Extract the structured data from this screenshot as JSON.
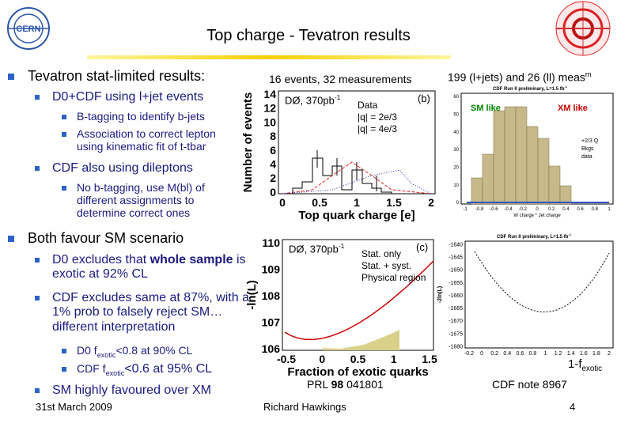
{
  "header": {
    "title": "Top charge - Tevatron results",
    "logo": "CERN"
  },
  "bullets": [
    {
      "level": 1,
      "segments": [
        {
          "text": "Tevatron stat-limited results:"
        }
      ]
    },
    {
      "level": 2,
      "segments": [
        {
          "text": "D0+CDF using l+jet events"
        }
      ]
    },
    {
      "level": 3,
      "segments": [
        {
          "text": "B-tagging to identify b-jets"
        }
      ]
    },
    {
      "level": 3,
      "segments": [
        {
          "text": "Association to correct lepton using kinematic fit of t-tbar"
        }
      ]
    },
    {
      "level": 2,
      "segments": [
        {
          "text": "CDF also using dileptons"
        }
      ]
    },
    {
      "level": 3,
      "segments": [
        {
          "text": "No b-tagging, use M(bl) of different assignments to determine correct ones"
        }
      ]
    },
    {
      "level": 1,
      "segments": [
        {
          "text": "Both favour SM scenario"
        }
      ]
    },
    {
      "level": 2,
      "segments": [
        {
          "text": "D0 excludes that "
        },
        {
          "text": "whole sample",
          "bold": true
        },
        {
          "text": " is exotic at 92% CL"
        }
      ]
    },
    {
      "level": 2,
      "segments": [
        {
          "text": "CDF excludes same at 87%, with a 1% prob to falsely reject SM… different interpretation"
        }
      ]
    },
    {
      "level": 3,
      "segments": [
        {
          "text": "D0 f"
        },
        {
          "text": "exotic",
          "sub": true
        },
        {
          "text": "<0.8 at 90% CL"
        }
      ]
    },
    {
      "level": 3,
      "segments": [
        {
          "text": "CDF f"
        },
        {
          "text": "exotic",
          "sub": true
        },
        {
          "text": "<0.6 at 95% CL",
          "large": true
        }
      ]
    },
    {
      "level": 2,
      "segments": [
        {
          "text": "SM highly favoured over XM"
        }
      ]
    }
  ],
  "plots": {
    "d0_charge": {
      "caption": [
        {
          "text": "16 events, 32 measurements"
        }
      ],
      "label": [
        {
          "text": "DØ, 370pb"
        },
        {
          "text": "-1",
          "sup": true
        }
      ],
      "panel": "(b)",
      "legend": [
        "Data",
        "|q| = 2e/3",
        "|q| = 4e/3"
      ],
      "ylabel": "Number of events",
      "xlabel": "Top quark charge [e]",
      "yticks": [
        "0",
        "2",
        "4",
        "6",
        "8",
        "10",
        "12",
        "14"
      ],
      "xticks": [
        "0",
        "0.5",
        "1",
        "1.5",
        "2"
      ]
    },
    "cdf_charge": {
      "caption": [
        {
          "text": "199 (l+jets) and 26 (ll) meas"
        },
        {
          "text": "m",
          "sup": true
        }
      ],
      "label": [
        {
          "text": "CDF Run II preliminary, L=1.5 fb"
        },
        {
          "text": "-1",
          "sup": true
        }
      ],
      "tags": [
        "SM like",
        "XM like"
      ],
      "legend": [
        "+2/3 Q",
        "Bkgs",
        "data"
      ],
      "xlabel": "W charge * Jet charge",
      "yticks": [
        "0",
        "10",
        "20",
        "30",
        "40",
        "50",
        "60"
      ],
      "xticks": [
        "-1",
        "-0.8",
        "-0.6",
        "-0.4",
        "-0.2",
        "0",
        "0.2",
        "0.4",
        "0.6",
        "0.8",
        "1"
      ]
    },
    "d0_fraction": {
      "caption": [
        {
          "text": "PRL "
        },
        {
          "text": "98",
          "bold": true
        },
        {
          "text": " 041801"
        }
      ],
      "label": [
        {
          "text": "DØ, 370pb"
        },
        {
          "text": "-1",
          "sup": true
        }
      ],
      "panel": "(c)",
      "legend": [
        "Stat. only",
        "Stat. + syst.",
        "Physical region"
      ],
      "ylabel": "-ln(L)",
      "xlabel": "Fraction of exotic quarks",
      "yticks": [
        "106",
        "107",
        "108",
        "109",
        "110"
      ],
      "xticks": [
        "-0.5",
        "0",
        "0.5",
        "1",
        "1.5"
      ]
    },
    "cdf_fraction": {
      "caption": [
        {
          "text": "CDF note 8967"
        }
      ],
      "label": [
        {
          "text": "CDF Run II preliminary, L=1.5 fb"
        },
        {
          "text": "-1",
          "sup": true
        }
      ],
      "ylabel": "-2ln(L)",
      "xlabel": [
        {
          "text": "1-f"
        },
        {
          "text": "exotic",
          "sub": true
        }
      ],
      "yticks": [
        "-1680",
        "-1675",
        "-1670",
        "-1665",
        "-1660",
        "-1655",
        "-1650",
        "-1645",
        "-1640"
      ],
      "xticks": [
        "-0.2",
        "0",
        "0.2",
        "0.4",
        "0.6",
        "0.8",
        "1",
        "1.2",
        "1.4",
        "1.6",
        "1.8",
        "2"
      ]
    }
  },
  "footer": {
    "date": "31st March 2009",
    "author": "Richard Hawkings",
    "page": "4"
  }
}
